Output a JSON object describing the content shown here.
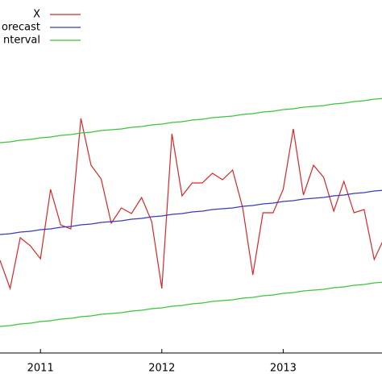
{
  "chart_data": {
    "type": "line",
    "categories": [
      null,
      null,
      null,
      null,
      "2011",
      null,
      null,
      null,
      null,
      null,
      null,
      null,
      null,
      null,
      null,
      null,
      "2012",
      null,
      null,
      null,
      null,
      null,
      null,
      null,
      null,
      null,
      null,
      null,
      "2013",
      null,
      null,
      null,
      null,
      null,
      null,
      null,
      null,
      null,
      null
    ],
    "ylim": [
      0,
      438
    ],
    "series": [
      {
        "name": "X",
        "color": "#d62728",
        "values": [
          115,
          80,
          143,
          133,
          117,
          203,
          159,
          154,
          291,
          233,
          216,
          161,
          180,
          173,
          193,
          163,
          80,
          272,
          195,
          211,
          211,
          223,
          215,
          227,
          180,
          97,
          174,
          174,
          203,
          278,
          196,
          233,
          218,
          176,
          213,
          174,
          178,
          116,
          143
        ]
      },
      {
        "name": "orecast",
        "color": "#3b3bb5",
        "values": [
          147,
          148,
          150,
          151,
          153,
          154,
          156,
          157,
          159,
          160,
          162,
          163,
          164,
          166,
          167,
          169,
          170,
          172,
          173,
          175,
          176,
          178,
          179,
          180,
          182,
          183,
          185,
          186,
          188,
          189,
          191,
          192,
          193,
          195,
          196,
          198,
          199,
          201,
          202
        ]
      },
      {
        "name": "nterval",
        "color": "#3cc43c",
        "values": [
          261,
          262,
          264,
          265,
          267,
          268,
          270,
          271,
          273,
          274,
          276,
          277,
          278,
          280,
          281,
          283,
          284,
          286,
          287,
          289,
          290,
          292,
          293,
          294,
          296,
          297,
          299,
          300,
          302,
          303,
          305,
          306,
          307,
          309,
          310,
          312,
          313,
          315,
          316
        ],
        "lower": [
          33,
          34,
          36,
          37,
          39,
          40,
          42,
          43,
          45,
          46,
          48,
          49,
          50,
          52,
          53,
          55,
          56,
          58,
          59,
          61,
          62,
          64,
          65,
          66,
          68,
          69,
          71,
          72,
          74,
          75,
          77,
          78,
          79,
          81,
          82,
          84,
          85,
          87,
          88
        ]
      }
    ]
  }
}
